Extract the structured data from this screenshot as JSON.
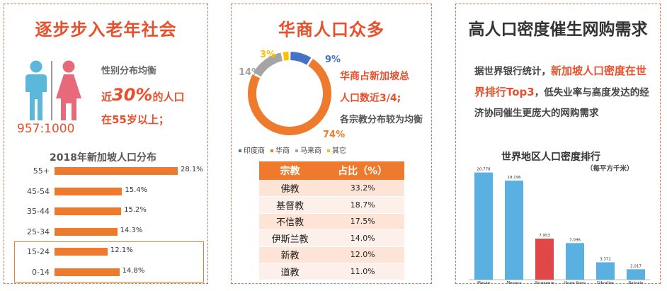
{
  "panel1": {
    "title": "逐步步入老年社会",
    "gender_text": "性别分布均衡",
    "ratio": "957:1000",
    "line_pre": "近",
    "line_pct": "30%",
    "line_post": "的人口",
    "line2": "在55岁以上；",
    "age_chart_title": "2018年新加坡人口分布"
  },
  "panel2": {
    "title": "华商人口众多",
    "callout_line1": "华商占新加坡总",
    "callout_line2": "人口数近3/4;",
    "callout_line3": "各宗教分布较为均衡",
    "table_headers": [
      "宗教",
      "占比（%）"
    ],
    "table_rows": [
      [
        "佛教",
        "33.2%"
      ],
      [
        "基督教",
        "18.7%"
      ],
      [
        "不信教",
        "17.5%"
      ],
      [
        "伊斯兰教",
        "14.0%"
      ],
      [
        "新教",
        "12.0%"
      ],
      [
        "道教",
        "11.0%"
      ]
    ]
  },
  "panel3": {
    "title": "高人口密度催生网购需求",
    "text_a": "据世界银行统计，",
    "text_b": "新加坡人口密度在世界排行Top3",
    "text_c": "，低失业率与高度发达的经济协同催生更庞大的网购需求",
    "density_chart_title": "世界地区人口密度排行",
    "density_chart_subtitle": "（每平方千米）"
  },
  "colors": {
    "accent": "#e8502b",
    "bar_orange": "#ee7a2d",
    "bar_blue": "#5ab0e1",
    "bar_red": "#e04848",
    "male_blue": "#5bb8da",
    "female_pink": "#e86a7a"
  },
  "chart_data": [
    {
      "type": "bar",
      "orientation": "horizontal",
      "title": "2018年新加坡人口分布",
      "categories": [
        "55+",
        "45-54",
        "35-44",
        "25-34",
        "15-24",
        "0-14"
      ],
      "values": [
        28.1,
        15.4,
        15.2,
        14.3,
        12.1,
        14.8
      ],
      "value_labels": [
        "28.1%",
        "15.4%",
        "15.2%",
        "14.3%",
        "12.1%",
        "14.8%"
      ],
      "highlighted": "15-24"
    },
    {
      "type": "pie",
      "style": "donut",
      "categories": [
        "印度商",
        "华商",
        "马来商",
        "其它"
      ],
      "values": [
        9,
        74,
        14,
        3
      ],
      "value_labels": [
        "9%",
        "74%",
        "14%",
        "3%"
      ],
      "colors": [
        "#4472c4",
        "#ee7a2d",
        "#a5a5a5",
        "#ffc000"
      ]
    },
    {
      "type": "bar",
      "title": "世界地区人口密度排行",
      "subtitle": "（每平方千米）",
      "categories": [
        "Macao",
        "Monaco",
        "Singapore",
        "Hong Kong",
        "Gibraltar",
        "Bahrain"
      ],
      "values": [
        20778,
        19196,
        7953,
        7096,
        3372,
        2017
      ],
      "value_labels": [
        "20,778",
        "19,196",
        "7,953",
        "7,096",
        "3,372",
        "2,017"
      ],
      "highlighted": "Singapore"
    }
  ]
}
